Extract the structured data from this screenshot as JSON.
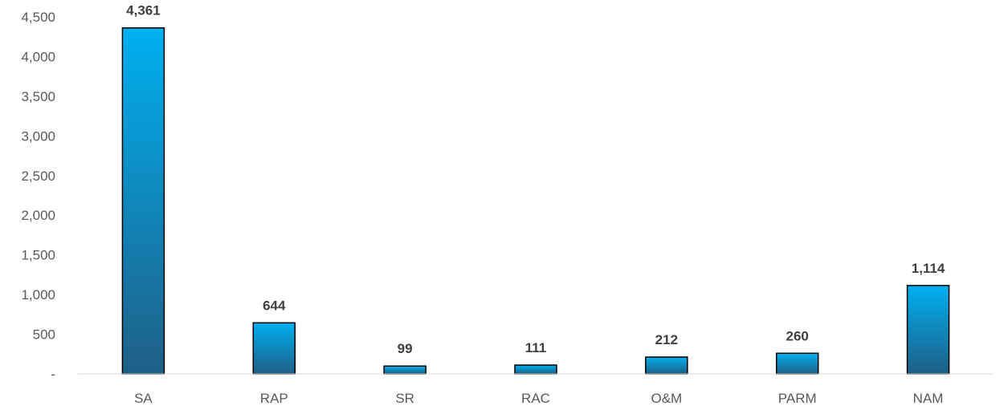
{
  "chart_data": {
    "type": "bar",
    "title": "",
    "xlabel": "",
    "ylabel": "",
    "categories": [
      "SA",
      "RAP",
      "SR",
      "RAC",
      "O&M",
      "PARM",
      "NAM"
    ],
    "values": [
      4361,
      644,
      99,
      111,
      212,
      260,
      1114
    ],
    "data_labels": [
      "4,361",
      "644",
      "99",
      "111",
      "212",
      "260",
      "1,114"
    ],
    "ylim": [
      0,
      4500
    ],
    "yticks": [
      0,
      500,
      1000,
      1500,
      2000,
      2500,
      3000,
      3500,
      4000,
      4500
    ],
    "ytick_labels": [
      "-",
      "500",
      "1,000",
      "1,500",
      "2,000",
      "2,500",
      "3,000",
      "3,500",
      "4,000",
      "4,500"
    ],
    "grid": false,
    "legend": "none",
    "colors": {
      "bar_top": "#00b0f0",
      "bar_bottom": "#1f5f86",
      "bar_outline": "#000000",
      "axis": "#d9d9d9",
      "tick_text": "#595959",
      "label_text": "#404040"
    }
  }
}
